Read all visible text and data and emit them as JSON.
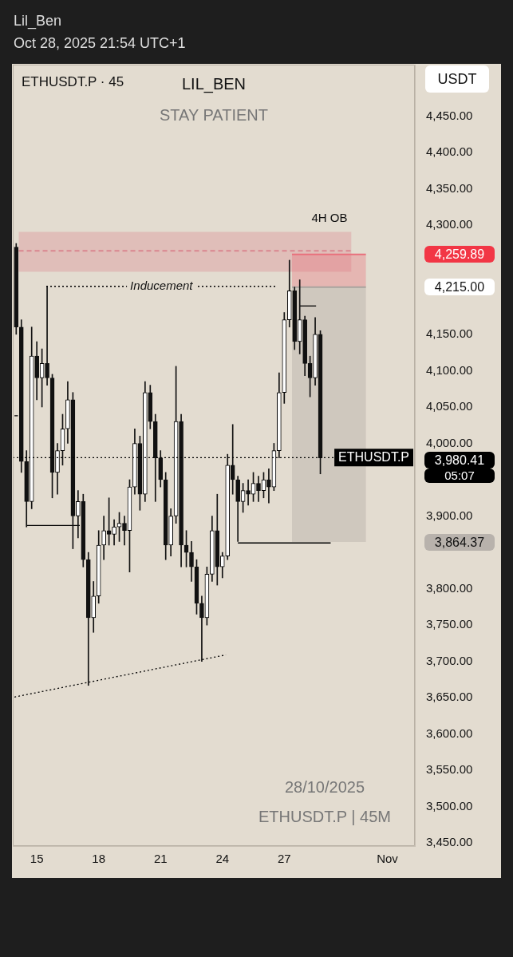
{
  "chart_data": {
    "type": "candlestick",
    "title": "ETHUSDT.P · 45",
    "annotations": [
      "Lil_Ben",
      "Oct 28, 2025 21:54 UTC+1",
      "LIL_BEN",
      "STAY PATIENT",
      "28/10/2025",
      "ETHUSDT.P | 45M",
      "USDT",
      "05:07",
      "4H OB",
      "4,259.89",
      "4,215.00",
      "3,980.41",
      "3,864.37"
    ],
    "x": [
      "2025-10-14T00:00",
      "2025-10-14T06:00",
      "2025-10-14T12:00",
      "2025-10-14T18:00",
      "2025-10-15T00:00",
      "2025-10-15T06:00",
      "2025-10-15T12:00",
      "2025-10-15T18:00",
      "2025-10-16T00:00",
      "2025-10-16T06:00",
      "2025-10-16T12:00",
      "2025-10-16T18:00",
      "2025-10-17T00:00",
      "2025-10-17T06:00",
      "2025-10-17T12:00",
      "2025-10-17T18:00",
      "2025-10-18T00:00",
      "2025-10-18T06:00",
      "2025-10-18T12:00",
      "2025-10-18T18:00",
      "2025-10-19T00:00",
      "2025-10-19T06:00",
      "2025-10-19T12:00",
      "2025-10-19T18:00",
      "2025-10-20T00:00",
      "2025-10-20T06:00",
      "2025-10-20T12:00",
      "2025-10-20T18:00",
      "2025-10-21T00:00",
      "2025-10-21T06:00",
      "2025-10-21T12:00",
      "2025-10-21T18:00",
      "2025-10-22T00:00",
      "2025-10-22T06:00",
      "2025-10-22T12:00",
      "2025-10-22T18:00",
      "2025-10-23T00:00",
      "2025-10-23T06:00",
      "2025-10-23T12:00",
      "2025-10-23T18:00",
      "2025-10-24T00:00",
      "2025-10-24T06:00",
      "2025-10-24T12:00",
      "2025-10-24T18:00",
      "2025-10-25T00:00",
      "2025-10-25T06:00",
      "2025-10-25T12:00",
      "2025-10-25T18:00",
      "2025-10-26T00:00",
      "2025-10-26T06:00",
      "2025-10-26T12:00",
      "2025-10-26T18:00",
      "2025-10-27T00:00",
      "2025-10-27T06:00",
      "2025-10-27T12:00",
      "2025-10-27T18:00",
      "2025-10-28T00:00",
      "2025-10-28T06:00",
      "2025-10-28T12:00",
      "2025-10-28T18:00"
    ],
    "ohlc": [
      [
        4270,
        4275,
        4150,
        4160
      ],
      [
        4160,
        4170,
        3960,
        3975
      ],
      [
        3975,
        3990,
        3885,
        3920
      ],
      [
        3920,
        4160,
        3910,
        4120
      ],
      [
        4120,
        4140,
        4060,
        4090
      ],
      [
        4090,
        4130,
        4050,
        4110
      ],
      [
        4110,
        4216,
        4080,
        4090
      ],
      [
        4090,
        4095,
        3925,
        3960
      ],
      [
        3960,
        4000,
        3930,
        3990
      ],
      [
        3990,
        4040,
        3970,
        4020
      ],
      [
        4020,
        4085,
        4000,
        4060
      ],
      [
        4060,
        4070,
        3855,
        3900
      ],
      [
        3900,
        3935,
        3870,
        3920
      ],
      [
        3920,
        3930,
        3830,
        3840
      ],
      [
        3840,
        3850,
        3667,
        3760
      ],
      [
        3760,
        3810,
        3740,
        3790
      ],
      [
        3790,
        3880,
        3780,
        3860
      ],
      [
        3860,
        3900,
        3840,
        3880
      ],
      [
        3880,
        3925,
        3860,
        3875
      ],
      [
        3875,
        3895,
        3860,
        3885
      ],
      [
        3885,
        3905,
        3865,
        3890
      ],
      [
        3890,
        3900,
        3860,
        3880
      ],
      [
        3880,
        3950,
        3823,
        3940
      ],
      [
        3940,
        4020,
        3930,
        4000
      ],
      [
        4000,
        4010,
        3908,
        3930
      ],
      [
        3930,
        4085,
        3920,
        4070
      ],
      [
        4070,
        4080,
        4020,
        4030
      ],
      [
        4030,
        4040,
        3920,
        3980
      ],
      [
        3980,
        3990,
        3940,
        3950
      ],
      [
        3950,
        3960,
        3840,
        3860
      ],
      [
        3860,
        3910,
        3845,
        3900
      ],
      [
        3900,
        4106,
        3890,
        4030
      ],
      [
        4030,
        4040,
        3830,
        3860
      ],
      [
        3860,
        3880,
        3830,
        3850
      ],
      [
        3850,
        3865,
        3810,
        3830
      ],
      [
        3830,
        3840,
        3765,
        3780
      ],
      [
        3780,
        3790,
        3700,
        3760
      ],
      [
        3760,
        3830,
        3750,
        3820
      ],
      [
        3820,
        3900,
        3810,
        3880
      ],
      [
        3880,
        3930,
        3805,
        3830
      ],
      [
        3830,
        3850,
        3815,
        3845
      ],
      [
        3845,
        3985,
        3840,
        3970
      ],
      [
        3970,
        4026,
        3930,
        3950
      ],
      [
        3950,
        3955,
        3865,
        3920
      ],
      [
        3920,
        3945,
        3905,
        3935
      ],
      [
        3935,
        3950,
        3915,
        3930
      ],
      [
        3930,
        3960,
        3920,
        3945
      ],
      [
        3945,
        3955,
        3920,
        3935
      ],
      [
        3935,
        3960,
        3925,
        3950
      ],
      [
        3950,
        3965,
        3918,
        3940
      ],
      [
        3940,
        4000,
        3935,
        3990
      ],
      [
        3990,
        4097,
        3980,
        4070
      ],
      [
        4070,
        4180,
        4055,
        4170
      ],
      [
        4170,
        4252,
        4160,
        4210
      ],
      [
        4210,
        4215,
        4129,
        4140
      ],
      [
        4140,
        4225,
        4123,
        4170
      ],
      [
        4170,
        4175,
        4093,
        4110
      ],
      [
        4110,
        4120,
        4064,
        4090
      ],
      [
        4090,
        4173,
        4080,
        4150
      ],
      [
        4150,
        4155,
        3958,
        3980
      ]
    ],
    "series": [
      {
        "type": "line",
        "color": "#d9868f",
        "line_style": "dashed",
        "x": [
          "2025-10-14T03:00",
          "2025-10-30T06:00"
        ],
        "values": [
          4265,
          4265
        ],
        "lower": [
          4236,
          4236
        ],
        "upper": [
          4291,
          4291
        ]
      },
      {
        "type": "line",
        "color": "#e8707c",
        "x": [
          "2025-10-27T09:00",
          "2025-10-30T23:00"
        ],
        "values": [
          4259.89,
          4259.89
        ],
        "lower": [
          4215,
          4215
        ],
        "upper": [
          4259.89,
          4259.89
        ]
      },
      {
        "type": "line",
        "color": "#aaa49e",
        "x": [
          "2025-10-27T09:00",
          "2025-10-30T23:00"
        ],
        "values": [
          4215,
          4215
        ],
        "lower": [
          3864.37,
          3864.37
        ],
        "upper": [
          4215,
          4215
        ]
      },
      {
        "type": "line",
        "name": "Inducement",
        "color": "#000000",
        "line_style": "dotted",
        "x": [
          "2025-10-15T11:00",
          "2025-10-26T15:00"
        ],
        "values": [
          4216,
          4216
        ]
      },
      {
        "type": "line",
        "color": "#000000",
        "line_style": "dotted",
        "x": [
          "2025-10-13T22:00",
          "2025-10-24T04:00"
        ],
        "values": [
          3651,
          3709
        ]
      },
      {
        "type": "line",
        "color": "#000000",
        "line_style": "solid",
        "x": [
          "2025-10-14T12:00",
          "2025-10-17T02:00"
        ],
        "values": [
          3887,
          3887
        ]
      },
      {
        "type": "line",
        "color": "#000000",
        "line_style": "solid",
        "x": [
          "2025-10-24T18:00",
          "2025-10-29T06:00"
        ],
        "values": [
          3863,
          3863
        ]
      },
      {
        "type": "line",
        "color": "#000000",
        "line_style": "solid",
        "x": [
          "2025-10-27T18:00",
          "2025-10-28T13:00"
        ],
        "values": [
          4189,
          4189
        ]
      },
      {
        "type": "line",
        "color": "#000000",
        "line_style": "solid",
        "x": [
          "2025-10-13T22:00",
          "2025-10-14T02:00"
        ],
        "values": [
          4038,
          4038
        ]
      }
    ],
    "ref_lines": [
      {
        "axis": "y",
        "value": 3980.41,
        "label": "ETHUSDT.P",
        "line_style": "dotted",
        "color": "#000000"
      }
    ],
    "xlim": [
      "2025-10-13T20:00",
      "2025-11-02T08:00"
    ],
    "xticks": [
      {
        "value": "2025-10-15",
        "label": "15"
      },
      {
        "value": "2025-10-18",
        "label": "18"
      },
      {
        "value": "2025-10-21",
        "label": "21"
      },
      {
        "value": "2025-10-24",
        "label": "24"
      },
      {
        "value": "2025-10-27",
        "label": "27"
      },
      {
        "value": "2025-11-01",
        "label": "Nov"
      }
    ],
    "ylim": [
      3446,
      4521
    ],
    "yticks": [
      {
        "value": 3450,
        "label": "3,450.00"
      },
      {
        "value": 3500,
        "label": "3,500.00"
      },
      {
        "value": 3550,
        "label": "3,550.00"
      },
      {
        "value": 3600,
        "label": "3,600.00"
      },
      {
        "value": 3650,
        "label": "3,650.00"
      },
      {
        "value": 3700,
        "label": "3,700.00"
      },
      {
        "value": 3750,
        "label": "3,750.00"
      },
      {
        "value": 3800,
        "label": "3,800.00"
      },
      {
        "value": 3900,
        "label": "3,900.00"
      },
      {
        "value": 4000,
        "label": "4,000.00"
      },
      {
        "value": 4050,
        "label": "4,050.00"
      },
      {
        "value": 4100,
        "label": "4,100.00"
      },
      {
        "value": 4150,
        "label": "4,150.00"
      },
      {
        "value": 4300,
        "label": "4,300.00"
      },
      {
        "value": 4350,
        "label": "4,350.00"
      },
      {
        "value": 4400,
        "label": "4,400.00"
      },
      {
        "value": 4450,
        "label": "4,450.00"
      }
    ]
  }
}
